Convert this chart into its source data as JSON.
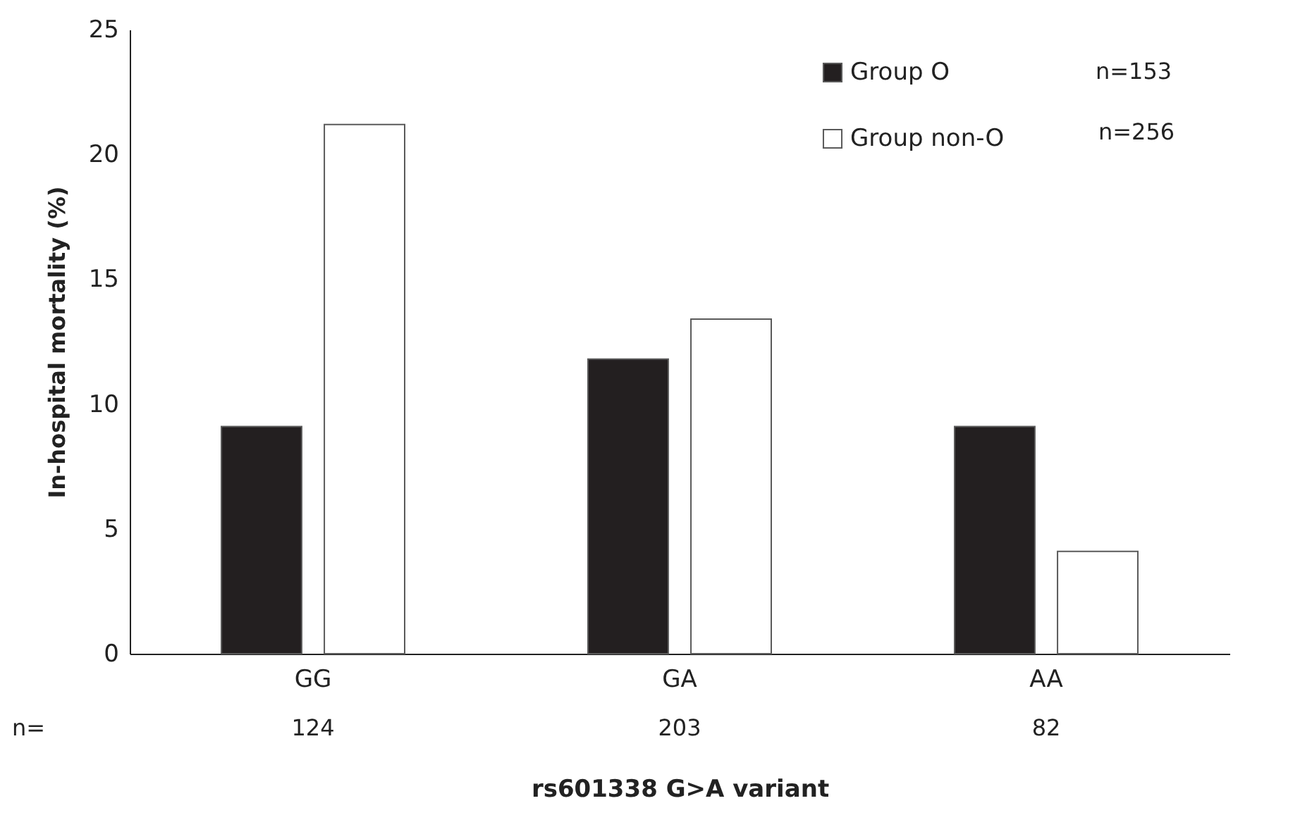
{
  "chart_data": {
    "type": "bar",
    "xlabel": "rs601338 G>A variant",
    "ylabel": "In-hospital mortality (%)",
    "categories": [
      "GG",
      "GA",
      "AA"
    ],
    "series": [
      {
        "name": "Group O",
        "color": "#231f20",
        "values": [
          9.1,
          11.8,
          9.1
        ]
      },
      {
        "name": "Group non-O",
        "color": "#ffffff",
        "values": [
          21.2,
          13.4,
          4.1
        ]
      }
    ],
    "ylim": [
      0,
      25
    ],
    "yticks": [
      0,
      5,
      10,
      15,
      20,
      25
    ],
    "grid": false,
    "legend": "top right",
    "annotations": [
      "n=153",
      "n=256",
      "n=",
      "124",
      "203",
      "82"
    ]
  }
}
